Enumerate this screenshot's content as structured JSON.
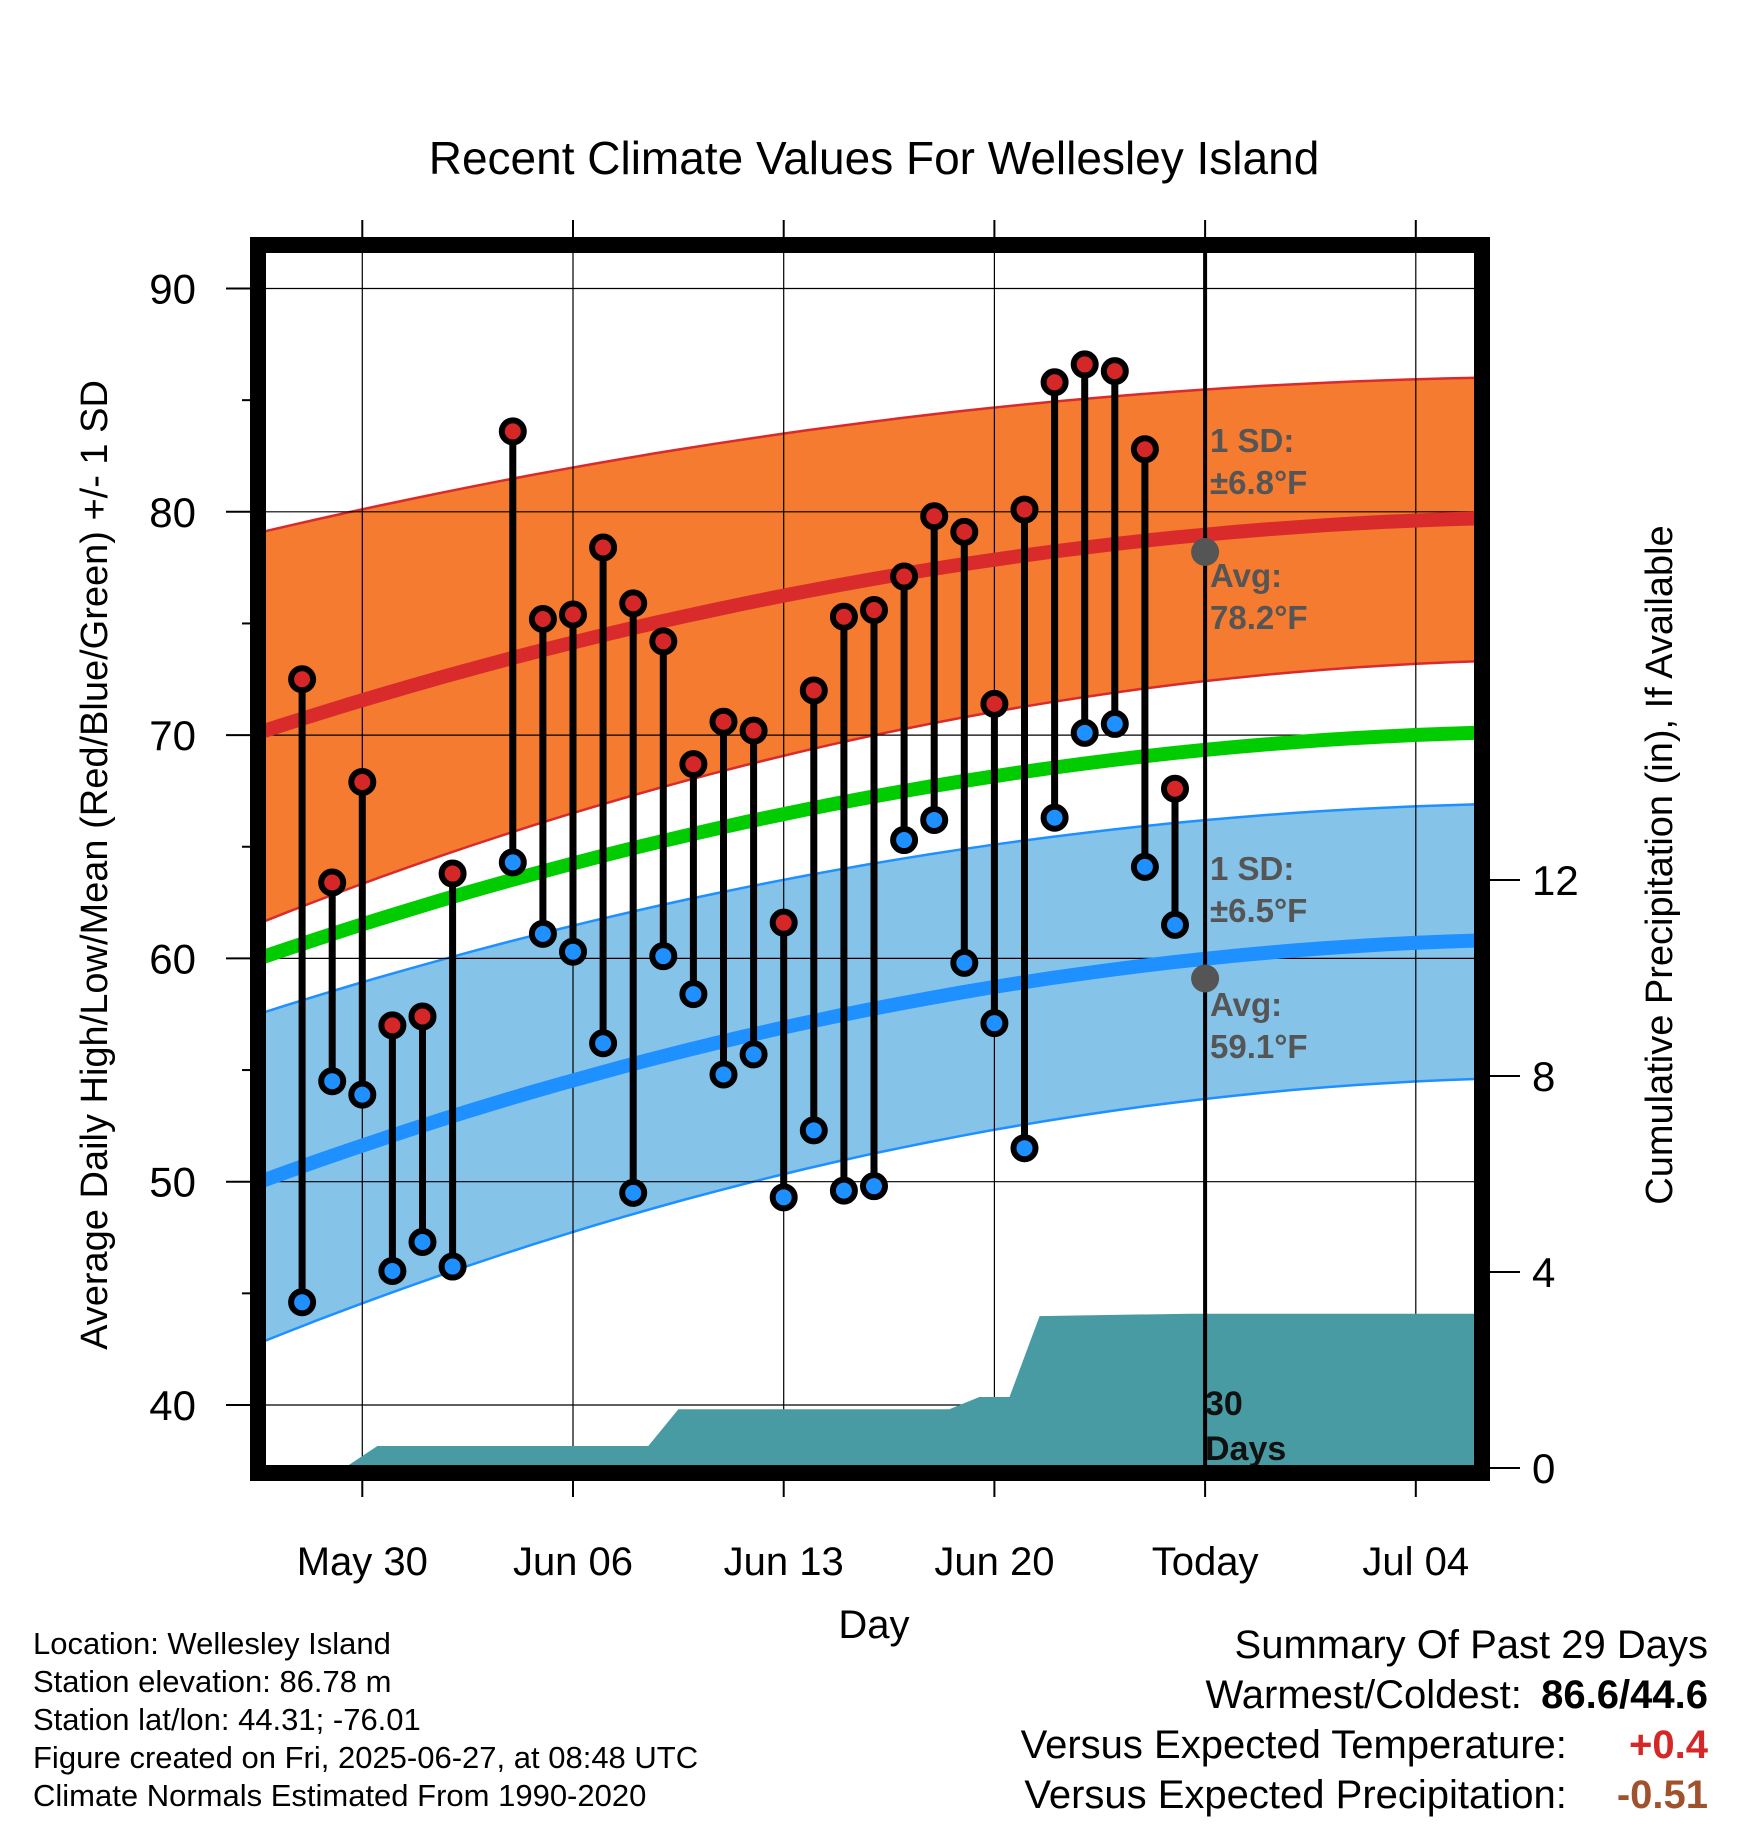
{
  "chart_data": {
    "type": "line",
    "title": "Recent Climate Values For Wellesley Island",
    "xlabel": "Day",
    "ylabel": "Average Daily High/Low/Mean (Red/Blue/Green) +/- 1 SD",
    "y2label": "Cumulative Precipitation (in), If Available",
    "ylim": [
      37,
      92
    ],
    "y2lim": [
      0,
      24
    ],
    "yticks": [
      40,
      50,
      60,
      70,
      80,
      90
    ],
    "y2ticks": [
      0,
      4,
      8,
      12
    ],
    "x_tick_labels": [
      {
        "day": 3,
        "label": "May 30"
      },
      {
        "day": 10,
        "label": "Jun 06"
      },
      {
        "day": 17,
        "label": "Jun 13"
      },
      {
        "day": 24,
        "label": "Jun 20"
      },
      {
        "day": 31,
        "label": "Today"
      },
      {
        "day": 38,
        "label": "Jul 04"
      }
    ],
    "x_range_days": [
      0,
      40
    ],
    "today_day": 31,
    "grid": true,
    "normals": {
      "x": [
        0,
        40
      ],
      "high_avg": [
        70.3,
        79.7
      ],
      "high_sd_upper": [
        79.2,
        86.0
      ],
      "high_sd_lower": [
        61.8,
        73.3
      ],
      "mean": [
        60.2,
        70.1
      ],
      "low_avg": [
        50.2,
        60.8
      ],
      "low_sd_upper": [
        57.7,
        66.9
      ],
      "low_sd_lower": [
        43.0,
        54.6
      ]
    },
    "high_annotation": {
      "sd_label": "1 SD:",
      "sd_value": "±6.8°F",
      "avg_label": "Avg:",
      "avg_value": "78.2°F",
      "avg": 78.2
    },
    "low_annotation": {
      "sd_label": "1 SD:",
      "sd_value": "±6.5°F",
      "avg_label": "Avg:",
      "avg_value": "59.1°F",
      "avg": 59.1
    },
    "daily": {
      "day": [
        1,
        2,
        3,
        4,
        5,
        6,
        8,
        9,
        10,
        11,
        12,
        13,
        14,
        15,
        16,
        17,
        18,
        19,
        20,
        21,
        22,
        23,
        24,
        25,
        26,
        27,
        28,
        29,
        30
      ],
      "high": [
        72.5,
        63.4,
        67.9,
        57.0,
        57.4,
        63.8,
        83.6,
        75.2,
        75.4,
        78.4,
        75.9,
        74.2,
        68.7,
        70.6,
        70.2,
        61.6,
        72.0,
        75.3,
        75.6,
        77.1,
        79.8,
        79.1,
        71.4,
        80.1,
        85.8,
        86.6,
        86.3,
        82.8,
        67.6
      ],
      "low": [
        44.6,
        54.5,
        53.9,
        46.0,
        47.3,
        46.2,
        64.3,
        61.1,
        60.3,
        56.2,
        49.5,
        60.1,
        58.4,
        54.8,
        55.7,
        49.3,
        52.3,
        49.6,
        49.8,
        65.3,
        66.2,
        59.8,
        57.1,
        51.5,
        66.3,
        70.1,
        70.5,
        64.1,
        61.5
      ]
    },
    "precip_cumulative": {
      "day": [
        0.5,
        1.5,
        2.5,
        3.5,
        4.5,
        12.5,
        13.5,
        22.5,
        23.5,
        24.5,
        25.5,
        30.5,
        31,
        40
      ],
      "value": [
        0,
        0.04,
        0.04,
        0.45,
        0.45,
        0.45,
        1.2,
        1.2,
        1.45,
        1.45,
        3.1,
        3.15,
        3.15,
        3.15
      ]
    },
    "precip_label": [
      "30",
      "Days"
    ],
    "colors": {
      "high_band": "#f47b30",
      "high_line": "#d92b2b",
      "low_band": "#86c3e9",
      "low_line": "#1e90ff",
      "mean_line": "#00cc00",
      "precip": "#489aa3",
      "high_marker": "#d62728",
      "low_marker": "#1e90ff",
      "annotation_text": "#555555",
      "avg_dot": "#555555"
    }
  },
  "footer": {
    "location": "Location: Wellesley Island",
    "elevation": "Station elevation: 86.78 m",
    "latlon": "Station lat/lon: 44.31; -76.01",
    "created": "Figure created on Fri, 2025-06-27, at 08:48 UTC",
    "normals": "Climate Normals Estimated From 1990-2020"
  },
  "summary": {
    "title": "Summary Of Past 29 Days",
    "warm_cold_label": "Warmest/Coldest:",
    "warm_cold_value": "86.6/44.6",
    "temp_label": "Versus Expected Temperature:",
    "temp_value": "+0.4",
    "temp_color": "#d62728",
    "precip_label": "Versus Expected Precipitation:",
    "precip_value": "-0.51",
    "precip_color": "#a0522d"
  }
}
